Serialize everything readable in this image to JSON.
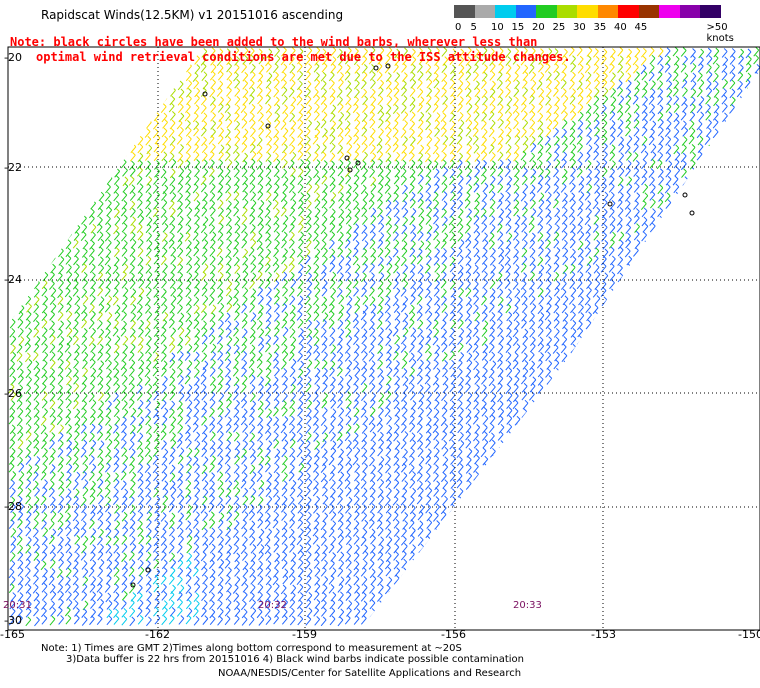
{
  "title": "Rapidscat Winds(12.5KM) v1 20151016 ascending",
  "notice": {
    "line1": "Note: black circles have been added to the wind barbs, wherever less than",
    "line2": "optimal wind retrieval conditions are met due to the ISS attitude changes."
  },
  "legend": {
    "swatches": [
      {
        "label": "0",
        "color": "#555555"
      },
      {
        "label": "5",
        "color": "#aaaaaa"
      },
      {
        "label": "10",
        "color": "#00ccee"
      },
      {
        "label": "15",
        "color": "#2266ff"
      },
      {
        "label": "20",
        "color": "#22cc22"
      },
      {
        "label": "25",
        "color": "#aadd00"
      },
      {
        "label": "30",
        "color": "#ffdd00"
      },
      {
        "label": "35",
        "color": "#ff8800"
      },
      {
        "label": "40",
        "color": "#ff0000"
      },
      {
        "label": "45",
        "color": "#993300"
      },
      {
        "label": "",
        "color": "#ee00ee"
      },
      {
        "label": "",
        "color": "#8800aa"
      },
      {
        "label": "",
        "color": "#330066"
      }
    ],
    "max_label": ">50 knots"
  },
  "lat_labels": [
    "-20",
    "-22",
    "-24",
    "-26",
    "-28",
    "-30"
  ],
  "lon_labels": [
    "-165",
    "-162",
    "-159",
    "-156",
    "-153",
    "-150"
  ],
  "pass_times": [
    "20:31",
    "20:32",
    "20:33"
  ],
  "footnote": {
    "line1": "Note: 1) Times are GMT 2)Times along bottom correspond to measurement at ~20S",
    "line2": "3)Data buffer is 22 hrs from 20151016 4) Black wind barbs indicate possible contamination"
  },
  "credit": "NOAA/NESDIS/Center for Satellite Applications and Research"
}
